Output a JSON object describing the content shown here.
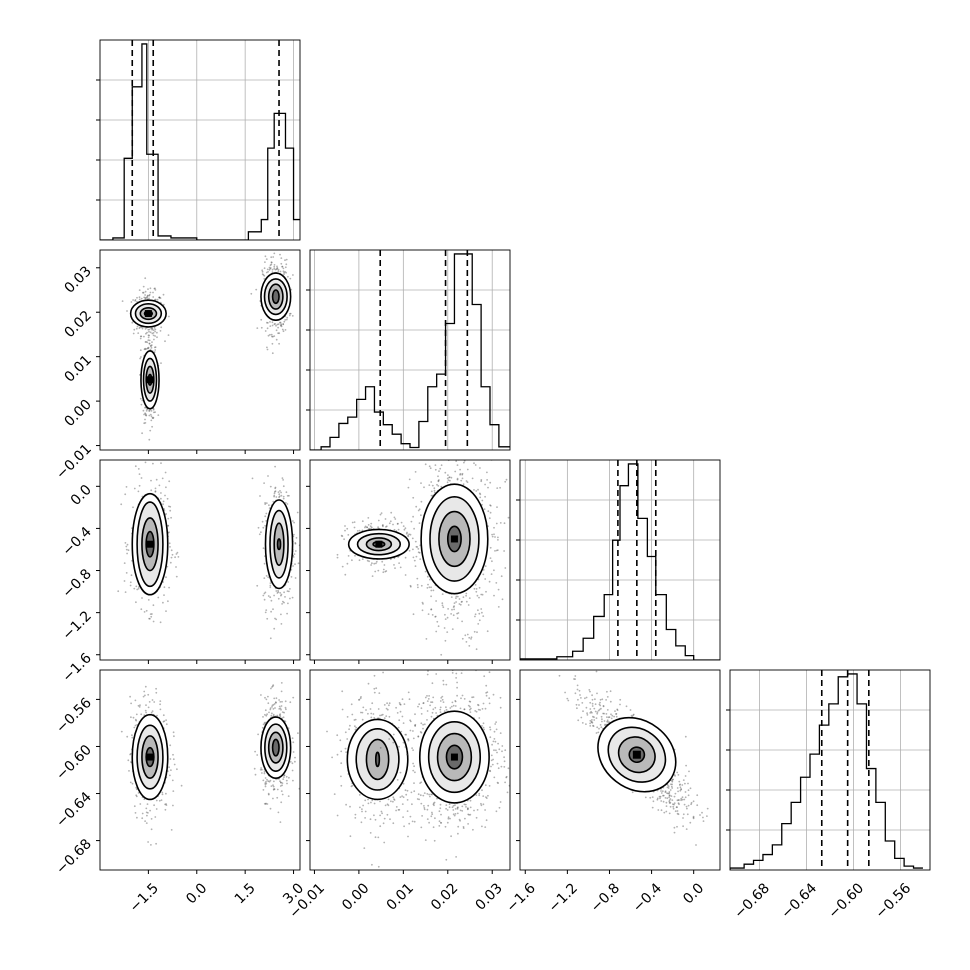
{
  "chart_data": {
    "type": "corner",
    "dims": [
      {
        "index": 0,
        "range": [
          -3.0,
          3.2
        ],
        "ticks": [
          "-1.5",
          "0.0",
          "1.5",
          "3.0"
        ],
        "tick_values": [
          -1.5,
          0.0,
          1.5,
          3.0
        ]
      },
      {
        "index": 1,
        "range": [
          -0.011,
          0.034
        ],
        "ticks": [
          "-0.01",
          "0.00",
          "0.01",
          "0.02",
          "0.03"
        ],
        "tick_values": [
          -0.01,
          0.0,
          0.01,
          0.02,
          0.03
        ]
      },
      {
        "index": 2,
        "range": [
          -1.65,
          0.25
        ],
        "ticks": [
          "-1.6",
          "-1.2",
          "-0.8",
          "-0.4",
          "0.0"
        ],
        "tick_values": [
          -1.6,
          -1.2,
          -0.8,
          -0.4,
          0.0
        ]
      },
      {
        "index": 3,
        "range": [
          -0.705,
          -0.535
        ],
        "ticks": [
          "-0.68",
          "-0.64",
          "-0.60",
          "-0.56"
        ],
        "tick_values": [
          -0.68,
          -0.64,
          -0.6,
          -0.56
        ]
      }
    ],
    "histograms": [
      {
        "dim": 0,
        "quantiles": [
          -2.0,
          -1.35,
          2.55
        ],
        "bin_edges": [
          -3.0,
          -2.6,
          -2.25,
          -2.0,
          -1.7,
          -1.55,
          -1.2,
          -0.8,
          0.0,
          1.6,
          2.0,
          2.2,
          2.4,
          2.75,
          3.0,
          3.2
        ],
        "counts": [
          0,
          0.01,
          0.4,
          0.75,
          0.96,
          0.42,
          0.02,
          0.01,
          0,
          0.04,
          0.1,
          0.45,
          0.62,
          0.45,
          0.1
        ]
      },
      {
        "dim": 1,
        "quantiles": [
          0.0048,
          0.0195,
          0.0244
        ],
        "bin_edges": [
          -0.011,
          -0.0085,
          -0.0065,
          -0.0045,
          -0.0025,
          -0.0005,
          0.0015,
          0.0035,
          0.0055,
          0.0075,
          0.0095,
          0.0115,
          0.0135,
          0.0155,
          0.0175,
          0.0195,
          0.0215,
          0.0235,
          0.0255,
          0.0275,
          0.0295,
          0.0315,
          0.034
        ],
        "counts": [
          0.0,
          0.05,
          0.2,
          0.42,
          0.52,
          0.8,
          1.0,
          0.6,
          0.4,
          0.25,
          0.1,
          0.04,
          0.45,
          1.0,
          1.2,
          2.0,
          3.1,
          3.1,
          2.3,
          1.0,
          0.4,
          0.05
        ]
      },
      {
        "dim": 2,
        "quantiles": [
          -0.72,
          -0.54,
          -0.36
        ],
        "bin_edges": [
          -1.65,
          -1.3,
          -1.15,
          -1.05,
          -0.95,
          -0.85,
          -0.77,
          -0.7,
          -0.62,
          -0.53,
          -0.44,
          -0.36,
          -0.26,
          -0.17,
          -0.08,
          0.0,
          0.25
        ],
        "counts": [
          0.01,
          0.03,
          0.08,
          0.2,
          0.4,
          0.6,
          1.1,
          1.6,
          1.8,
          1.3,
          0.95,
          0.6,
          0.28,
          0.13,
          0.04,
          0.0
        ]
      },
      {
        "dim": 3,
        "quantiles": [
          -0.627,
          -0.605,
          -0.587
        ],
        "bin_edges": [
          -0.705,
          -0.693,
          -0.685,
          -0.677,
          -0.669,
          -0.661,
          -0.653,
          -0.645,
          -0.637,
          -0.629,
          -0.621,
          -0.613,
          -0.605,
          -0.597,
          -0.589,
          -0.581,
          -0.573,
          -0.565,
          -0.557,
          -0.549,
          -0.541
        ],
        "counts": [
          0.02,
          0.06,
          0.1,
          0.16,
          0.26,
          0.48,
          0.7,
          0.96,
          1.2,
          1.5,
          1.72,
          2.0,
          2.03,
          1.72,
          1.05,
          0.7,
          0.3,
          0.12,
          0.04,
          0.02
        ]
      }
    ],
    "scatter_panels": [
      {
        "x_dim": 0,
        "y_dim": 1,
        "clusters": [
          {
            "cx": -1.5,
            "cy": 0.0197,
            "sx": 0.17,
            "sy": 0.0018,
            "n": 380,
            "contours": [
              [
                0.12,
                0.0006
              ],
              [
                0.25,
                0.0013
              ],
              [
                0.4,
                0.0022
              ],
              [
                0.55,
                0.003
              ]
            ],
            "core": true
          },
          {
            "cx": -1.45,
            "cy": 0.0048,
            "sx": 0.08,
            "sy": 0.0035,
            "n": 360,
            "contours": [
              [
                0.05,
                0.0012
              ],
              [
                0.12,
                0.003
              ],
              [
                0.2,
                0.0048
              ],
              [
                0.28,
                0.0065
              ]
            ],
            "core": true
          },
          {
            "cx": 2.45,
            "cy": 0.0235,
            "sx": 0.15,
            "sy": 0.003,
            "n": 420,
            "contours": [
              [
                0.1,
                0.0015
              ],
              [
                0.22,
                0.0028
              ],
              [
                0.35,
                0.004
              ],
              [
                0.46,
                0.0053
              ]
            ],
            "core": false
          }
        ]
      },
      {
        "x_dim": 0,
        "y_dim": 2,
        "clusters": [
          {
            "cx": -1.45,
            "cy": -0.55,
            "sx": 0.22,
            "sy": 0.22,
            "n": 480,
            "contours": [
              [
                0.12,
                0.12
              ],
              [
                0.25,
                0.25
              ],
              [
                0.4,
                0.4
              ],
              [
                0.55,
                0.48
              ]
            ],
            "core": true
          },
          {
            "cx": 2.55,
            "cy": -0.55,
            "sx": 0.18,
            "sy": 0.22,
            "n": 460,
            "contours": [
              [
                0.04,
                0.05
              ],
              [
                0.15,
                0.2
              ],
              [
                0.28,
                0.32
              ],
              [
                0.42,
                0.42
              ]
            ],
            "core": false
          }
        ]
      },
      {
        "x_dim": 0,
        "y_dim": 3,
        "clusters": [
          {
            "cx": -1.45,
            "cy": -0.609,
            "sx": 0.22,
            "sy": 0.018,
            "n": 520,
            "contours": [
              [
                0.12,
                0.008
              ],
              [
                0.25,
                0.018
              ],
              [
                0.4,
                0.027
              ],
              [
                0.55,
                0.036
              ]
            ],
            "core": true
          },
          {
            "cx": 2.45,
            "cy": -0.601,
            "sx": 0.17,
            "sy": 0.015,
            "n": 460,
            "contours": [
              [
                0.1,
                0.007
              ],
              [
                0.22,
                0.013
              ],
              [
                0.34,
                0.02
              ],
              [
                0.46,
                0.026
              ]
            ],
            "core": false
          }
        ]
      },
      {
        "x_dim": 1,
        "y_dim": 2,
        "clusters": [
          {
            "cx": 0.0045,
            "cy": -0.55,
            "sx": 0.0025,
            "sy": 0.08,
            "n": 420,
            "contours": [
              [
                0.0013,
                0.025
              ],
              [
                0.0028,
                0.06
              ],
              [
                0.0048,
                0.1
              ],
              [
                0.0068,
                0.14
              ]
            ],
            "core": true
          },
          {
            "cx": 0.0215,
            "cy": -0.5,
            "sx": 0.0035,
            "sy": 0.3,
            "n": 700,
            "contours": [
              [
                0.0015,
                0.12
              ],
              [
                0.0035,
                0.26
              ],
              [
                0.0055,
                0.4
              ],
              [
                0.0075,
                0.52
              ]
            ],
            "core": true
          }
        ]
      },
      {
        "x_dim": 1,
        "y_dim": 3,
        "clusters": [
          {
            "cx": 0.0042,
            "cy": -0.611,
            "sx": 0.0028,
            "sy": 0.02,
            "n": 480,
            "contours": [
              [
                0.0004,
                0.006
              ],
              [
                0.0025,
                0.017
              ],
              [
                0.0048,
                0.026
              ],
              [
                0.0068,
                0.034
              ]
            ],
            "core": false
          },
          {
            "cx": 0.0215,
            "cy": -0.609,
            "sx": 0.004,
            "sy": 0.022,
            "n": 820,
            "contours": [
              [
                0.0018,
                0.01
              ],
              [
                0.0038,
                0.02
              ],
              [
                0.0058,
                0.03
              ],
              [
                0.0078,
                0.039
              ]
            ],
            "core": true
          }
        ]
      },
      {
        "x_dim": 2,
        "y_dim": 3,
        "clusters": [
          {
            "cx": -0.54,
            "cy": -0.607,
            "sx": 0.18,
            "sy": 0.018,
            "n": 900,
            "tilt": -0.85,
            "contours": [
              [
                0.08,
                0.008
              ],
              [
                0.2,
                0.018
              ],
              [
                0.32,
                0.027
              ],
              [
                0.44,
                0.036
              ]
            ],
            "core": true
          }
        ]
      }
    ]
  }
}
